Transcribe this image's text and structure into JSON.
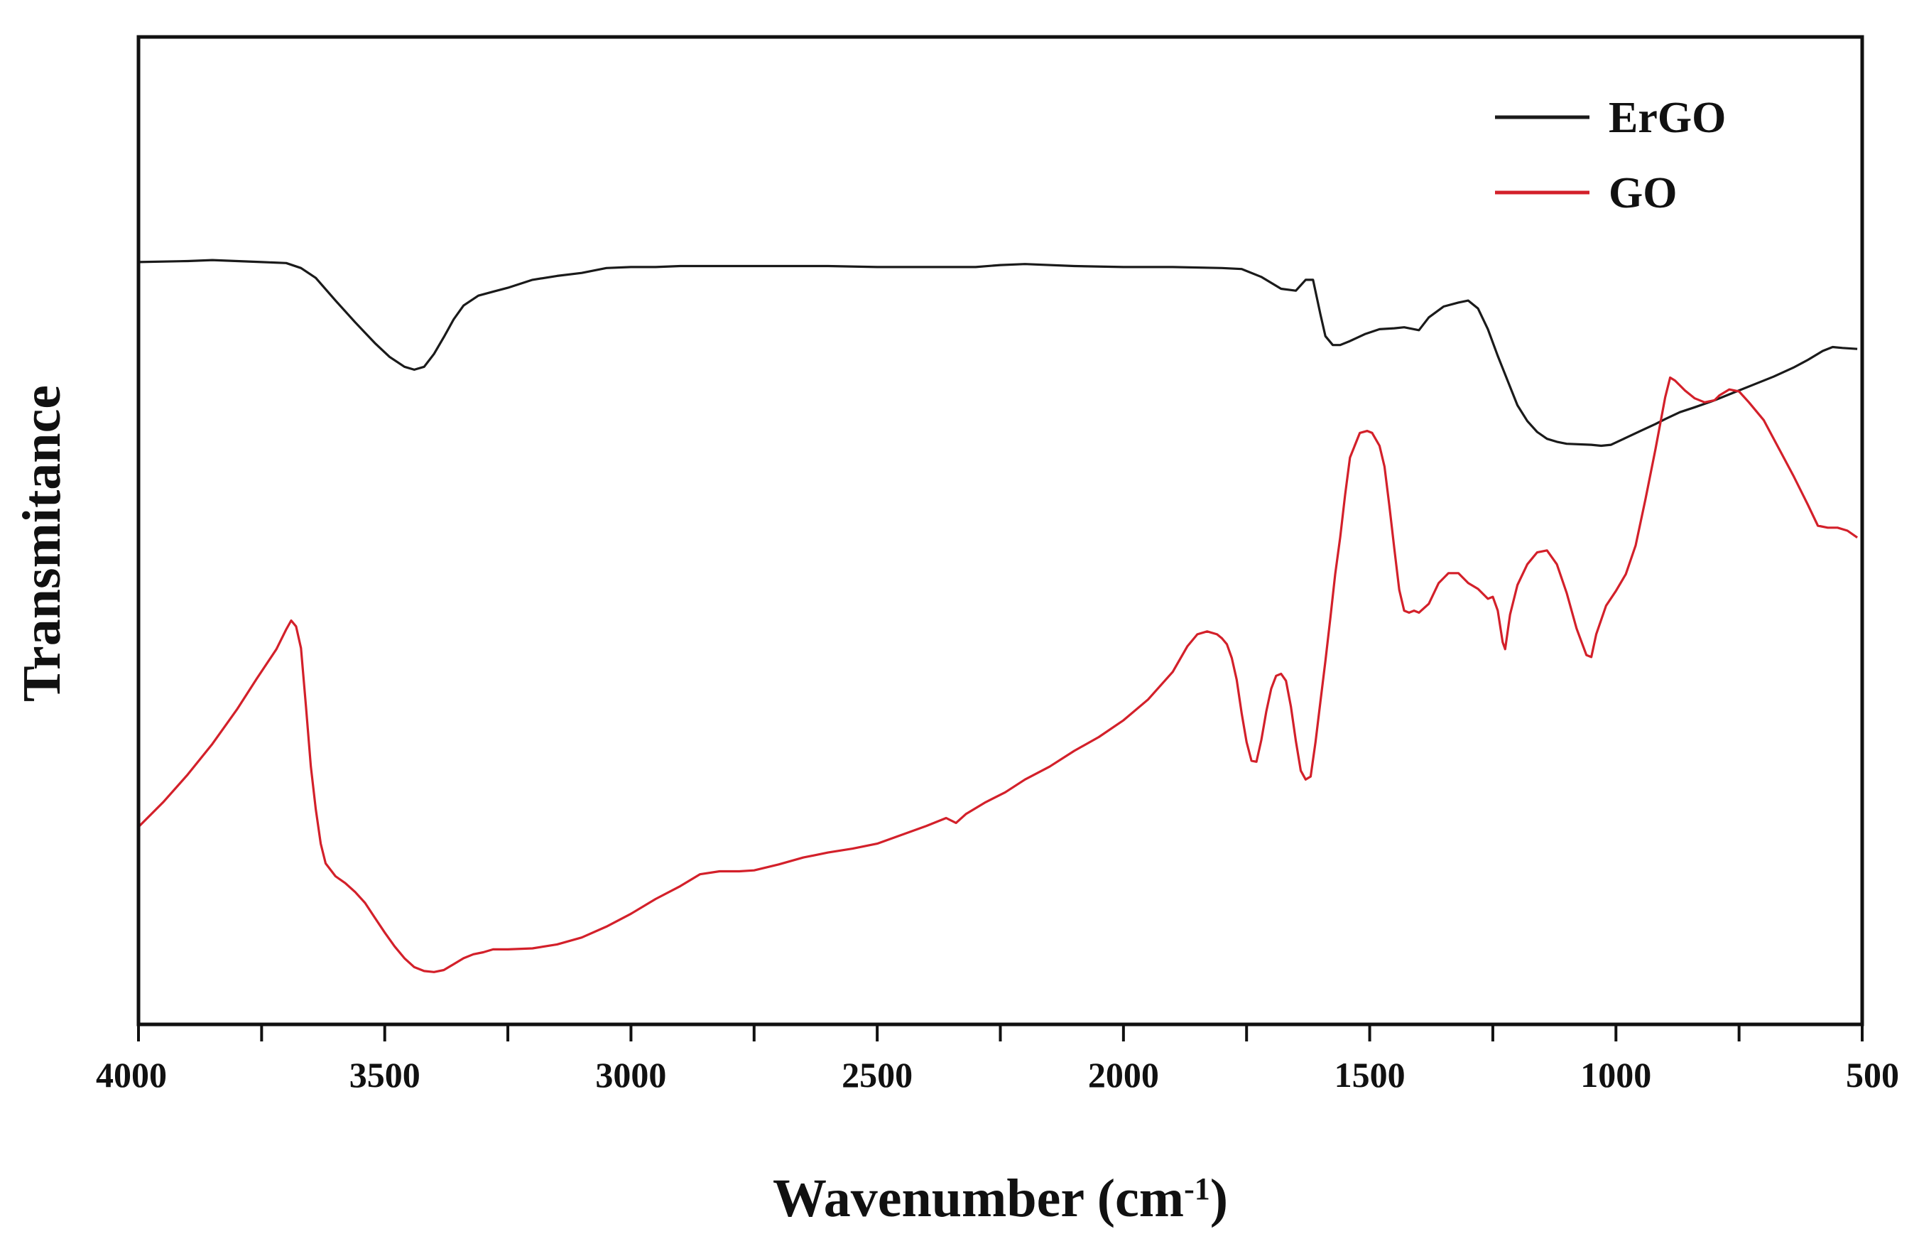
{
  "chart_data": {
    "type": "line",
    "title": "",
    "xlabel": "Wavenumber (cm",
    "xlabel_superscript": "-1",
    "xlabel_suffix": ")",
    "ylabel": "Transmitance",
    "xlim": [
      4000,
      500
    ],
    "x_reversed": true,
    "ylim": [
      0,
      100
    ],
    "y_ticks_shown": false,
    "grid": false,
    "legend_position": "top-right",
    "x_ticks": [
      4000,
      3500,
      3000,
      2500,
      2000,
      1500,
      1000,
      500
    ],
    "x_tick_labels": [
      "4000",
      "3500",
      "3000",
      "2500",
      "2000",
      "1500",
      "1000",
      "500"
    ],
    "series": [
      {
        "name": "ErGO",
        "color": "#1a1a1a",
        "points": [
          [
            4000,
            77.2
          ],
          [
            3900,
            77.3
          ],
          [
            3850,
            77.4
          ],
          [
            3800,
            77.3
          ],
          [
            3750,
            77.2
          ],
          [
            3700,
            77.1
          ],
          [
            3670,
            76.6
          ],
          [
            3640,
            75.6
          ],
          [
            3600,
            73.3
          ],
          [
            3560,
            71.1
          ],
          [
            3520,
            69.0
          ],
          [
            3490,
            67.6
          ],
          [
            3460,
            66.6
          ],
          [
            3440,
            66.3
          ],
          [
            3420,
            66.6
          ],
          [
            3400,
            67.9
          ],
          [
            3380,
            69.6
          ],
          [
            3360,
            71.4
          ],
          [
            3340,
            72.8
          ],
          [
            3310,
            73.8
          ],
          [
            3280,
            74.2
          ],
          [
            3250,
            74.6
          ],
          [
            3200,
            75.4
          ],
          [
            3150,
            75.8
          ],
          [
            3100,
            76.1
          ],
          [
            3050,
            76.6
          ],
          [
            3000,
            76.7
          ],
          [
            2950,
            76.7
          ],
          [
            2900,
            76.8
          ],
          [
            2850,
            76.8
          ],
          [
            2800,
            76.8
          ],
          [
            2700,
            76.8
          ],
          [
            2600,
            76.8
          ],
          [
            2500,
            76.7
          ],
          [
            2400,
            76.7
          ],
          [
            2350,
            76.7
          ],
          [
            2300,
            76.7
          ],
          [
            2250,
            76.9
          ],
          [
            2200,
            77.0
          ],
          [
            2100,
            76.8
          ],
          [
            2000,
            76.7
          ],
          [
            1900,
            76.7
          ],
          [
            1800,
            76.6
          ],
          [
            1760,
            76.5
          ],
          [
            1720,
            75.7
          ],
          [
            1680,
            74.5
          ],
          [
            1650,
            74.3
          ],
          [
            1630,
            75.4
          ],
          [
            1615,
            75.4
          ],
          [
            1600,
            71.9
          ],
          [
            1590,
            69.7
          ],
          [
            1575,
            68.8
          ],
          [
            1560,
            68.8
          ],
          [
            1540,
            69.2
          ],
          [
            1510,
            69.9
          ],
          [
            1480,
            70.4
          ],
          [
            1450,
            70.5
          ],
          [
            1430,
            70.6
          ],
          [
            1400,
            70.3
          ],
          [
            1380,
            71.6
          ],
          [
            1350,
            72.7
          ],
          [
            1320,
            73.1
          ],
          [
            1300,
            73.3
          ],
          [
            1280,
            72.5
          ],
          [
            1260,
            70.4
          ],
          [
            1240,
            67.7
          ],
          [
            1220,
            65.2
          ],
          [
            1200,
            62.7
          ],
          [
            1180,
            61.1
          ],
          [
            1160,
            60.0
          ],
          [
            1140,
            59.3
          ],
          [
            1120,
            59.0
          ],
          [
            1100,
            58.8
          ],
          [
            1050,
            58.7
          ],
          [
            1030,
            58.6
          ],
          [
            1010,
            58.7
          ],
          [
            980,
            59.4
          ],
          [
            950,
            60.1
          ],
          [
            920,
            60.8
          ],
          [
            900,
            61.3
          ],
          [
            870,
            62.0
          ],
          [
            840,
            62.5
          ],
          [
            800,
            63.2
          ],
          [
            760,
            64.0
          ],
          [
            720,
            64.8
          ],
          [
            680,
            65.6
          ],
          [
            640,
            66.5
          ],
          [
            610,
            67.3
          ],
          [
            580,
            68.2
          ],
          [
            560,
            68.6
          ],
          [
            540,
            68.5
          ],
          [
            510,
            68.4
          ]
        ]
      },
      {
        "name": "GO",
        "color": "#d3202a",
        "points": [
          [
            4000,
            20.0
          ],
          [
            3950,
            22.5
          ],
          [
            3900,
            25.3
          ],
          [
            3850,
            28.4
          ],
          [
            3800,
            31.9
          ],
          [
            3760,
            35.0
          ],
          [
            3720,
            38.0
          ],
          [
            3700,
            40.0
          ],
          [
            3690,
            40.9
          ],
          [
            3680,
            40.3
          ],
          [
            3670,
            38.1
          ],
          [
            3660,
            32.2
          ],
          [
            3650,
            26.1
          ],
          [
            3640,
            21.8
          ],
          [
            3630,
            18.3
          ],
          [
            3620,
            16.3
          ],
          [
            3600,
            15.0
          ],
          [
            3580,
            14.3
          ],
          [
            3560,
            13.4
          ],
          [
            3540,
            12.3
          ],
          [
            3520,
            10.8
          ],
          [
            3500,
            9.3
          ],
          [
            3480,
            7.9
          ],
          [
            3460,
            6.7
          ],
          [
            3440,
            5.8
          ],
          [
            3420,
            5.4
          ],
          [
            3400,
            5.3
          ],
          [
            3380,
            5.5
          ],
          [
            3360,
            6.1
          ],
          [
            3340,
            6.7
          ],
          [
            3320,
            7.1
          ],
          [
            3300,
            7.3
          ],
          [
            3280,
            7.6
          ],
          [
            3250,
            7.6
          ],
          [
            3200,
            7.7
          ],
          [
            3150,
            8.1
          ],
          [
            3100,
            8.8
          ],
          [
            3050,
            9.9
          ],
          [
            3000,
            11.2
          ],
          [
            2950,
            12.7
          ],
          [
            2900,
            14.0
          ],
          [
            2860,
            15.2
          ],
          [
            2820,
            15.5
          ],
          [
            2780,
            15.5
          ],
          [
            2750,
            15.6
          ],
          [
            2700,
            16.2
          ],
          [
            2650,
            16.9
          ],
          [
            2600,
            17.4
          ],
          [
            2550,
            17.8
          ],
          [
            2500,
            18.3
          ],
          [
            2450,
            19.2
          ],
          [
            2400,
            20.1
          ],
          [
            2360,
            20.9
          ],
          [
            2340,
            20.4
          ],
          [
            2320,
            21.3
          ],
          [
            2280,
            22.5
          ],
          [
            2240,
            23.5
          ],
          [
            2200,
            24.8
          ],
          [
            2150,
            26.1
          ],
          [
            2100,
            27.7
          ],
          [
            2050,
            29.1
          ],
          [
            2000,
            30.8
          ],
          [
            1950,
            32.9
          ],
          [
            1900,
            35.7
          ],
          [
            1870,
            38.3
          ],
          [
            1850,
            39.5
          ],
          [
            1830,
            39.8
          ],
          [
            1810,
            39.5
          ],
          [
            1800,
            39.1
          ],
          [
            1790,
            38.5
          ],
          [
            1780,
            37.1
          ],
          [
            1770,
            34.9
          ],
          [
            1760,
            31.5
          ],
          [
            1750,
            28.6
          ],
          [
            1740,
            26.7
          ],
          [
            1730,
            26.6
          ],
          [
            1720,
            28.8
          ],
          [
            1710,
            31.7
          ],
          [
            1700,
            34.0
          ],
          [
            1690,
            35.3
          ],
          [
            1680,
            35.5
          ],
          [
            1670,
            34.8
          ],
          [
            1660,
            32.2
          ],
          [
            1650,
            28.7
          ],
          [
            1640,
            25.7
          ],
          [
            1630,
            24.8
          ],
          [
            1620,
            25.1
          ],
          [
            1610,
            28.6
          ],
          [
            1600,
            32.7
          ],
          [
            1590,
            36.8
          ],
          [
            1580,
            41.1
          ],
          [
            1570,
            45.6
          ],
          [
            1560,
            49.3
          ],
          [
            1550,
            53.6
          ],
          [
            1540,
            57.4
          ],
          [
            1520,
            59.9
          ],
          [
            1505,
            60.1
          ],
          [
            1495,
            59.9
          ],
          [
            1480,
            58.6
          ],
          [
            1470,
            56.5
          ],
          [
            1460,
            52.5
          ],
          [
            1450,
            48.2
          ],
          [
            1440,
            44.0
          ],
          [
            1430,
            41.9
          ],
          [
            1420,
            41.7
          ],
          [
            1410,
            41.9
          ],
          [
            1400,
            41.7
          ],
          [
            1380,
            42.6
          ],
          [
            1360,
            44.7
          ],
          [
            1340,
            45.7
          ],
          [
            1320,
            45.7
          ],
          [
            1300,
            44.7
          ],
          [
            1280,
            44.1
          ],
          [
            1260,
            43.1
          ],
          [
            1250,
            43.3
          ],
          [
            1240,
            41.9
          ],
          [
            1230,
            38.7
          ],
          [
            1225,
            38.0
          ],
          [
            1215,
            41.5
          ],
          [
            1200,
            44.5
          ],
          [
            1180,
            46.6
          ],
          [
            1160,
            47.8
          ],
          [
            1140,
            48.0
          ],
          [
            1120,
            46.6
          ],
          [
            1100,
            43.7
          ],
          [
            1080,
            40.1
          ],
          [
            1060,
            37.4
          ],
          [
            1050,
            37.2
          ],
          [
            1040,
            39.5
          ],
          [
            1020,
            42.4
          ],
          [
            1000,
            43.9
          ],
          [
            980,
            45.6
          ],
          [
            960,
            48.5
          ],
          [
            940,
            53.2
          ],
          [
            920,
            58.2
          ],
          [
            900,
            63.5
          ],
          [
            890,
            65.5
          ],
          [
            880,
            65.2
          ],
          [
            860,
            64.2
          ],
          [
            840,
            63.4
          ],
          [
            820,
            63.0
          ],
          [
            800,
            63.2
          ],
          [
            790,
            63.7
          ],
          [
            770,
            64.3
          ],
          [
            750,
            64.1
          ],
          [
            730,
            63.0
          ],
          [
            700,
            61.2
          ],
          [
            670,
            58.4
          ],
          [
            640,
            55.6
          ],
          [
            610,
            52.6
          ],
          [
            590,
            50.5
          ],
          [
            570,
            50.3
          ],
          [
            550,
            50.3
          ],
          [
            530,
            50.0
          ],
          [
            510,
            49.3
          ]
        ]
      }
    ]
  }
}
